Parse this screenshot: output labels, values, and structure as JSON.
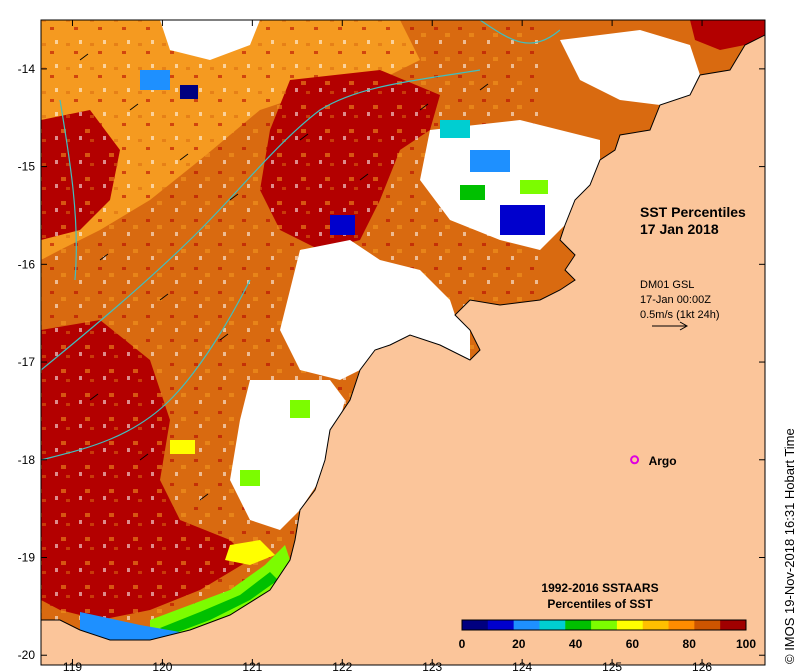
{
  "map": {
    "title_line1": "SST Percentiles",
    "title_line2": "17 Jan 2018",
    "wind_source": "DM01 GSL",
    "wind_time": "17-Jan 00:00Z",
    "wind_scale": "0.5m/s (1kt 24h)",
    "argo_label": "Argo",
    "colorbar_title_line1": "1992-2016 SSTAARS",
    "colorbar_title_line2": "Percentiles of SST",
    "credit": "© IMOS 19-Nov-2018 16:31 Hobart Time",
    "lon_ticks": [
      "119",
      "120",
      "121",
      "122",
      "123",
      "124",
      "125",
      "126"
    ],
    "lat_ticks": [
      "-14",
      "-15",
      "-16",
      "-17",
      "-18",
      "-19",
      "-20"
    ],
    "lon_range": [
      118.65,
      126.7
    ],
    "lat_range": [
      -20.1,
      -13.5
    ],
    "argo_position": {
      "lon": 125.25,
      "lat": -18.0
    },
    "colorbar": {
      "labels": [
        "0",
        "20",
        "40",
        "60",
        "80",
        "100"
      ],
      "colors": [
        "#000080",
        "#0000cd",
        "#1e90ff",
        "#00ced1",
        "#00c000",
        "#7cfc00",
        "#ffff00",
        "#ffc000",
        "#ff8c00",
        "#cd5500",
        "#a00000"
      ]
    },
    "colors": {
      "land": "#fbc59a",
      "ocean_hot": "#b30000",
      "ocean_orange": "#d96a10",
      "ocean_amber": "#f59a20",
      "cloud": "#ffffff",
      "argo": "#e000e0",
      "contour": "#40c0c0"
    }
  }
}
